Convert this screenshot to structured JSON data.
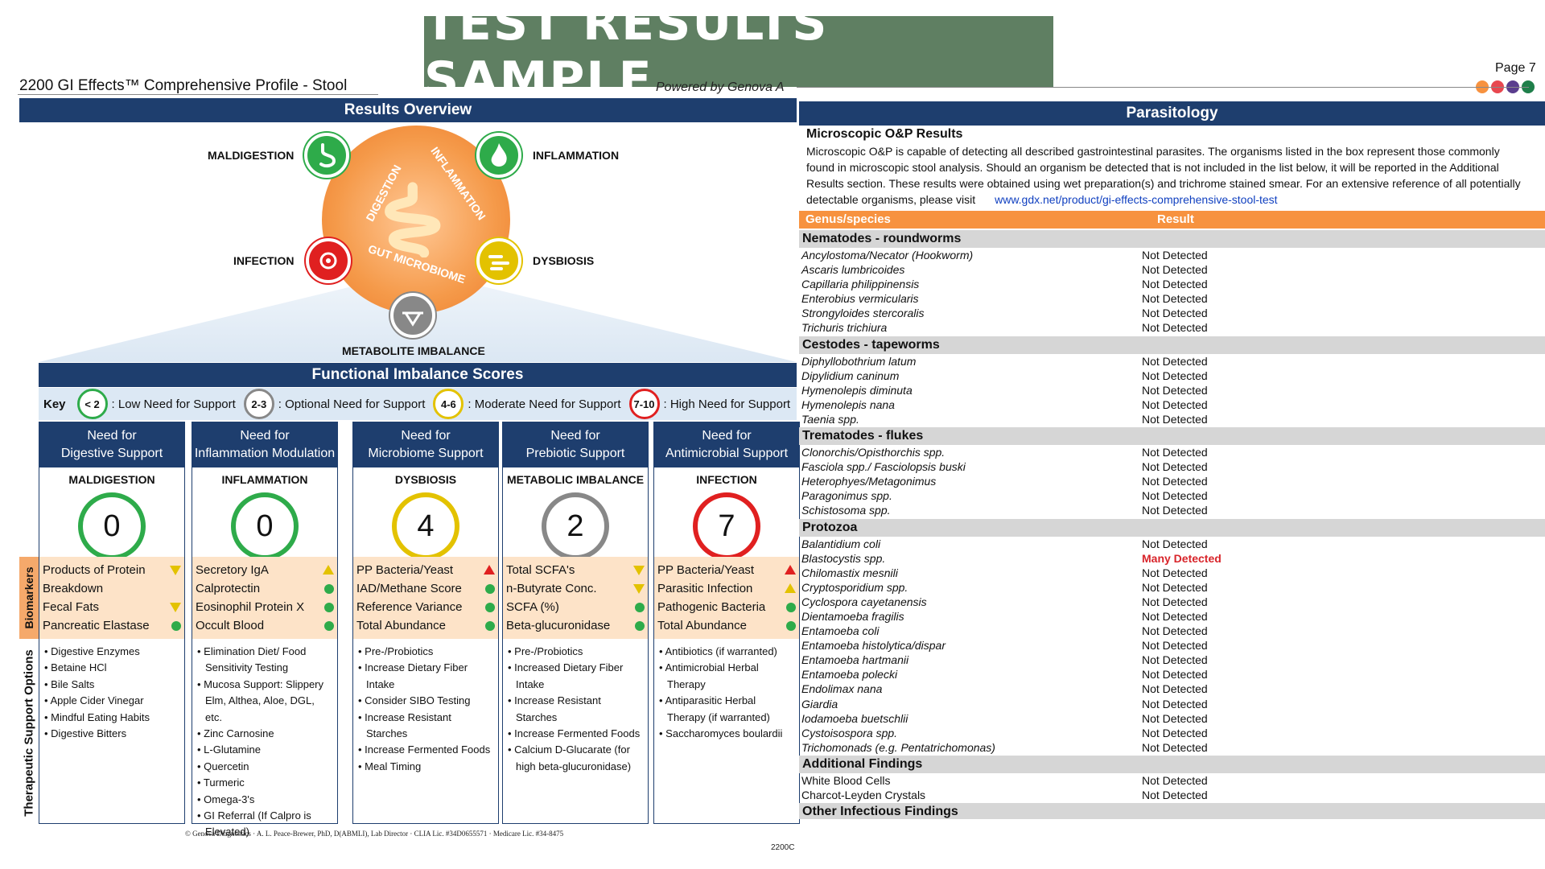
{
  "banner": "TEST RESULTS SAMPLE",
  "header": {
    "report_title": "2200 GI Effects™ Comprehensive Profile - Stool",
    "powered_by": "Powered by Genova A",
    "page": "Page 7"
  },
  "overview": {
    "title": "Results Overview",
    "ring_labels": {
      "digestion": "DIGESTION",
      "inflammation": "INFLAMMATION",
      "gut_microbiome": "GUT MICROBIOME"
    },
    "labels": {
      "maldigestion": "MALDIGESTION",
      "inflammation": "INFLAMMATION",
      "infection": "INFECTION",
      "dysbiosis": "DYSBIOSIS",
      "metabolite": "METABOLITE IMBALANCE"
    }
  },
  "scores_section": {
    "title": "Functional Imbalance Scores",
    "key_label": "Key",
    "key": [
      {
        "badge": "< 2",
        "text": ": Low Need for Support",
        "color": "#2eab4a"
      },
      {
        "badge": "2-3",
        "text": ": Optional Need for Support",
        "color": "#888888"
      },
      {
        "badge": "4-6",
        "text": ": Moderate Need for Support",
        "color": "#e3c200"
      },
      {
        "badge": "7-10",
        "text": ": High Need for Support",
        "color": "#e02020"
      }
    ],
    "side_biomarkers": "Biomarkers",
    "side_therapeutic": "Therapeutic Support Options",
    "columns": [
      {
        "header_line1": "Need for",
        "header_line2": "Digestive Support",
        "category": "MALDIGESTION",
        "score": "0",
        "score_color": "#2eab4a",
        "biomarkers": [
          {
            "label": "Products of Protein",
            "marker": "down"
          },
          {
            "label": "Breakdown",
            "marker": "none"
          },
          {
            "label": "Fecal Fats",
            "marker": "down"
          },
          {
            "label": "Pancreatic Elastase",
            "marker": "dot"
          }
        ],
        "therapies": [
          "• Digestive Enzymes",
          "• Betaine HCl",
          "• Bile Salts",
          "• Apple Cider Vinegar",
          "• Mindful Eating Habits",
          "• Digestive Bitters"
        ]
      },
      {
        "header_line1": "Need for",
        "header_line2": "Inflammation Modulation",
        "category": "INFLAMMATION",
        "score": "0",
        "score_color": "#2eab4a",
        "biomarkers": [
          {
            "label": "Secretory IgA",
            "marker": "upy"
          },
          {
            "label": "Calprotectin",
            "marker": "dot"
          },
          {
            "label": "Eosinophil Protein X",
            "marker": "dot"
          },
          {
            "label": "Occult Blood",
            "marker": "dot"
          }
        ],
        "therapies": [
          "• Elimination Diet/ Food Sensitivity Testing",
          "• Mucosa Support: Slippery Elm, Althea, Aloe, DGL, etc.",
          "• Zinc Carnosine",
          "• L-Glutamine",
          "• Quercetin",
          "• Turmeric",
          "• Omega-3's",
          "• GI Referral (If Calpro is Elevated)"
        ]
      },
      {
        "header_line1": "Need for",
        "header_line2": "Microbiome Support",
        "category": "DYSBIOSIS",
        "score": "4",
        "score_color": "#e3c200",
        "biomarkers": [
          {
            "label": "PP Bacteria/Yeast",
            "marker": "up"
          },
          {
            "label": "IAD/Methane Score",
            "marker": "dot"
          },
          {
            "label": "Reference Variance",
            "marker": "dot"
          },
          {
            "label": "Total Abundance",
            "marker": "dot"
          }
        ],
        "therapies": [
          "• Pre-/Probiotics",
          "• Increase Dietary Fiber Intake",
          "• Consider SIBO Testing",
          "• Increase Resistant Starches",
          "• Increase Fermented Foods",
          "• Meal Timing"
        ]
      },
      {
        "header_line1": "Need for",
        "header_line2": "Prebiotic Support",
        "category": "METABOLIC IMBALANCE",
        "score": "2",
        "score_color": "#888888",
        "biomarkers": [
          {
            "label": "Total SCFA's",
            "marker": "down"
          },
          {
            "label": "n-Butyrate Conc.",
            "marker": "down"
          },
          {
            "label": "SCFA (%)",
            "marker": "dot"
          },
          {
            "label": "Beta-glucuronidase",
            "marker": "dot"
          }
        ],
        "therapies": [
          "• Pre-/Probiotics",
          "• Increased Dietary Fiber Intake",
          "• Increase Resistant Starches",
          "• Increase Fermented Foods",
          "• Calcium D-Glucarate (for high beta-glucuronidase)"
        ]
      },
      {
        "header_line1": "Need for",
        "header_line2": "Antimicrobial Support",
        "category": "INFECTION",
        "score": "7",
        "score_color": "#e02020",
        "biomarkers": [
          {
            "label": "PP Bacteria/Yeast",
            "marker": "up"
          },
          {
            "label": "Parasitic Infection",
            "marker": "upy"
          },
          {
            "label": "Pathogenic Bacteria",
            "marker": "dot"
          },
          {
            "label": "Total Abundance",
            "marker": "dot"
          }
        ],
        "therapies": [
          "• Antibiotics (if warranted)",
          "• Antimicrobial Herbal Therapy",
          "• Antiparasitic Herbal Therapy (if warranted)",
          "• Saccharomyces boulardii"
        ]
      }
    ]
  },
  "footer": "© Genova Diagnostics · A. L. Peace-Brewer, PhD, D(ABMLI), Lab Director · CLIA Lic. #34D0655571 · Medicare Lic. #34-8475",
  "footer_code": "2200C",
  "parasitology": {
    "title": "Parasitology",
    "subtitle": "Microscopic O&P Results",
    "description": "Microscopic O&P is capable of detecting all described gastrointestinal parasites. The organisms listed in the box represent those commonly found in microscopic stool analysis. Should an organism be detected that is not included in the list below, it will be reported in the Additional Results section. These results were obtained using wet preparation(s) and trichrome stained smear. For an extensive reference of all potentially detectable organisms, please visit",
    "link": "www.gdx.net/product/gi-effects-comprehensive-stool-test",
    "col_genus": "Genus/species",
    "col_result": "Result",
    "groups": [
      {
        "name": "Nematodes - roundworms",
        "rows": [
          {
            "org": "Ancylostoma/Necator  (Hookworm)",
            "result": "Not Detected"
          },
          {
            "org": "Ascaris lumbricoides",
            "result": "Not Detected"
          },
          {
            "org": "Capillaria philippinensis",
            "result": "Not Detected"
          },
          {
            "org": "Enterobius vermicularis",
            "result": "Not Detected"
          },
          {
            "org": "Strongyloides stercoralis",
            "result": "Not Detected"
          },
          {
            "org": "Trichuris trichiura",
            "result": "Not Detected"
          }
        ]
      },
      {
        "name": "Cestodes - tapeworms",
        "rows": [
          {
            "org": "Diphyllobothrium latum",
            "result": "Not Detected"
          },
          {
            "org": "Dipylidium caninum",
            "result": "Not Detected"
          },
          {
            "org": "Hymenolepis diminuta",
            "result": "Not Detected"
          },
          {
            "org": "Hymenolepis nana",
            "result": "Not Detected"
          },
          {
            "org": "Taenia spp.",
            "result": "Not Detected"
          }
        ]
      },
      {
        "name": "Trematodes - flukes",
        "rows": [
          {
            "org": "Clonorchis/Opisthorchis  spp.",
            "result": "Not Detected"
          },
          {
            "org": "Fasciola  spp./ Fasciolopsis buski",
            "result": "Not Detected"
          },
          {
            "org": "Heterophyes/Metagonimus",
            "result": "Not Detected"
          },
          {
            "org": "Paragonimus spp.",
            "result": "Not Detected"
          },
          {
            "org": "Schistosoma spp.",
            "result": "Not Detected"
          }
        ]
      },
      {
        "name": "Protozoa",
        "rows": [
          {
            "org": "Balantidium coli",
            "result": "Not Detected"
          },
          {
            "org": "Blastocystis  spp.",
            "result": "Many Detected",
            "flag": true
          },
          {
            "org": "Chilomastix mesnili",
            "result": "Not Detected"
          },
          {
            "org": "Cryptosporidium spp.",
            "result": "Not Detected"
          },
          {
            "org": "Cyclospora cayetanensis",
            "result": "Not Detected"
          },
          {
            "org": "Dientamoeba fragilis",
            "result": "Not Detected"
          },
          {
            "org": "Entamoeba coli",
            "result": "Not Detected"
          },
          {
            "org": "Entamoeba histolytica/dispar",
            "result": "Not Detected"
          },
          {
            "org": "Entamoeba hartmanii",
            "result": "Not Detected"
          },
          {
            "org": "Entamoeba polecki",
            "result": "Not Detected"
          },
          {
            "org": "Endolimax nana",
            "result": "Not Detected"
          },
          {
            "org": "Giardia",
            "result": "Not Detected"
          },
          {
            "org": "Iodamoeba buetschlii",
            "result": "Not Detected"
          },
          {
            "org": "Cystoisospora  spp.",
            "result": "Not Detected"
          },
          {
            "org": "Trichomonads (e.g.  Pentatrichomonas)",
            "result": "Not Detected"
          }
        ]
      },
      {
        "name": "Additional Findings",
        "rows": [
          {
            "org": "White Blood Cells",
            "result": "Not Detected",
            "normal": true
          },
          {
            "org": "Charcot-Leyden Crystals",
            "result": "Not Detected",
            "normal": true
          }
        ]
      },
      {
        "name": "Other Infectious Findings",
        "rows": []
      }
    ]
  },
  "colors": {
    "navy": "#1e3e6e",
    "orange": "#f7923f",
    "banner_green": "#5f7f62",
    "high": "#d8242a"
  }
}
